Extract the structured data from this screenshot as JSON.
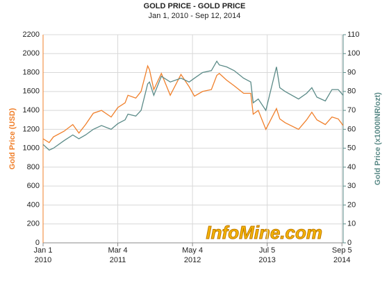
{
  "chart_data": {
    "type": "line",
    "title": "GOLD PRICE - GOLD PRICE",
    "subtitle": "Jan 1, 2010 - Sep 12, 2014",
    "ylabel": "Gold Price (USD)",
    "y2label": "Gold Price (x1000INR/ozt)",
    "watermark": "InfoMine.com",
    "grid": true,
    "x": [
      "2010-01-01",
      "2010-02-05",
      "2010-03-01",
      "2010-05-01",
      "2010-06-20",
      "2010-07-25",
      "2010-09-01",
      "2010-10-15",
      "2010-12-01",
      "2011-01-25",
      "2011-03-04",
      "2011-04-15",
      "2011-05-01",
      "2011-06-15",
      "2011-07-15",
      "2011-08-22",
      "2011-09-01",
      "2011-09-26",
      "2011-11-08",
      "2011-12-29",
      "2012-02-28",
      "2012-04-15",
      "2012-05-15",
      "2012-07-01",
      "2012-08-20",
      "2012-09-20",
      "2012-10-04",
      "2012-11-15",
      "2012-12-28",
      "2013-02-20",
      "2013-04-02",
      "2013-04-16",
      "2013-05-15",
      "2013-06-27",
      "2013-08-27",
      "2013-09-15",
      "2013-10-15",
      "2013-12-31",
      "2014-02-15",
      "2014-03-17",
      "2014-04-15",
      "2014-06-02",
      "2014-07-10",
      "2014-08-15",
      "2014-09-12"
    ],
    "series": [
      {
        "name": "Gold Price (USD)",
        "color": "#f07f2a",
        "axis": "y",
        "values": [
          1100,
          1060,
          1120,
          1180,
          1250,
          1160,
          1250,
          1370,
          1400,
          1330,
          1430,
          1480,
          1560,
          1530,
          1600,
          1870,
          1830,
          1620,
          1790,
          1560,
          1780,
          1650,
          1550,
          1600,
          1620,
          1770,
          1790,
          1720,
          1660,
          1580,
          1580,
          1360,
          1400,
          1200,
          1420,
          1310,
          1270,
          1200,
          1300,
          1380,
          1300,
          1250,
          1330,
          1310,
          1240
        ]
      },
      {
        "name": "Gold Price (x1000INR/ozt)",
        "color": "#5a8a87",
        "axis": "y2",
        "values": [
          52,
          49,
          50,
          54,
          57,
          55,
          57,
          60,
          62,
          60,
          63,
          65,
          68,
          67,
          70,
          84,
          85,
          78,
          88,
          85,
          87,
          85,
          87,
          90,
          91,
          96,
          94,
          93,
          91,
          87,
          85,
          74,
          76,
          70,
          93,
          82,
          80,
          76,
          79,
          82,
          77,
          75,
          81,
          81,
          78
        ]
      }
    ],
    "xlim": [
      "2010-01-01",
      "2014-09-12"
    ],
    "xticks": [
      {
        "value": "2010-01-01",
        "label": [
          "Jan 1",
          "2010"
        ]
      },
      {
        "value": "2011-03-04",
        "label": [
          "Mar 4",
          "2011"
        ]
      },
      {
        "value": "2012-05-04",
        "label": [
          "May 4",
          "2012"
        ]
      },
      {
        "value": "2013-07-05",
        "label": [
          "Jul 5",
          "2013"
        ]
      },
      {
        "value": "2014-09-05",
        "label": [
          "Sep 5",
          "2014"
        ]
      }
    ],
    "ylim": [
      0,
      2200
    ],
    "yticks": [
      0,
      200,
      400,
      600,
      800,
      1000,
      1200,
      1400,
      1600,
      1800,
      2000,
      2200
    ],
    "y2lim": [
      0,
      110
    ],
    "y2ticks": [
      0,
      10,
      20,
      30,
      40,
      50,
      60,
      70,
      80,
      90,
      100,
      110
    ]
  }
}
